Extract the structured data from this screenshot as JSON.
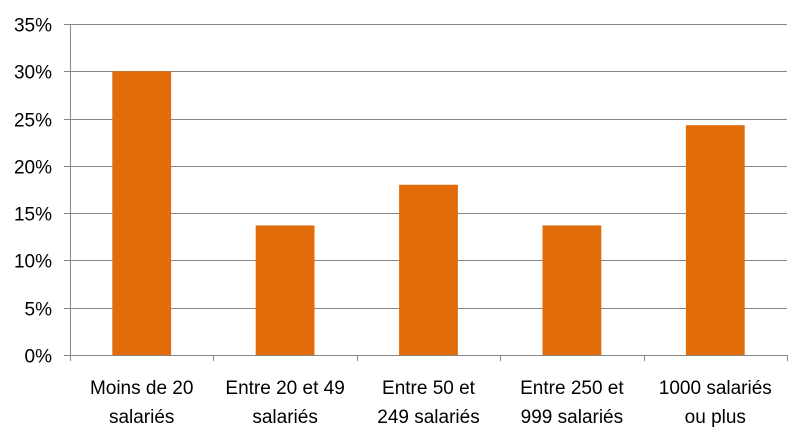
{
  "chart_data": {
    "type": "bar",
    "categories": [
      [
        "Moins de 20",
        "salariés"
      ],
      [
        "Entre 20 et 49",
        "salariés"
      ],
      [
        "Entre 50 et",
        "249 salariés"
      ],
      [
        "Entre 250 et",
        "999 salariés"
      ],
      [
        "1000 salariés",
        "ou plus"
      ]
    ],
    "values": [
      30.0,
      13.7,
      18.0,
      13.7,
      24.3
    ],
    "ylim": [
      0,
      35
    ],
    "yticks": [
      0,
      5,
      10,
      15,
      20,
      25,
      30,
      35
    ],
    "ytick_labels": [
      "0%",
      "5%",
      "10%",
      "15%",
      "20%",
      "25%",
      "30%",
      "35%"
    ],
    "title": "",
    "xlabel": "",
    "ylabel": "",
    "grid": true,
    "bar_color": "#E36C0A",
    "grid_color": "#868686",
    "axis_color": "#868686"
  }
}
